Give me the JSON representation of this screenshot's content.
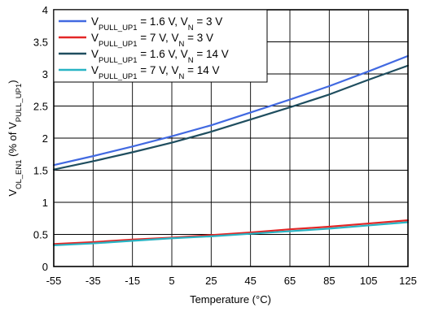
{
  "chart_data": {
    "type": "line",
    "xlabel": "Temperature (°C)",
    "ylabel": {
      "parts": [
        {
          "t": "V",
          "s": false
        },
        {
          "t": "OL_EN1",
          "s": true
        },
        {
          "t": " (% of V",
          "s": false
        },
        {
          "t": "PULL_UP1",
          "s": true
        },
        {
          "t": ")",
          "s": false
        }
      ]
    },
    "xlim": [
      -55,
      125
    ],
    "ylim": [
      0,
      4
    ],
    "xticks": [
      -55,
      -35,
      -15,
      5,
      25,
      45,
      65,
      85,
      105,
      125
    ],
    "yticks": [
      0,
      0.5,
      1,
      1.5,
      2,
      2.5,
      3,
      3.5,
      4
    ],
    "ytick_labels": [
      "0",
      "0.5",
      "1",
      "1.5",
      "2",
      "2.5",
      "3",
      "3.5",
      "4"
    ],
    "grid": true,
    "legend_position": "top-left",
    "series": [
      {
        "name_parts": [
          {
            "t": "V",
            "s": false
          },
          {
            "t": "PULL_UP1",
            "s": true
          },
          {
            "t": " = 1.6 V, V",
            "s": false
          },
          {
            "t": "N",
            "s": true
          },
          {
            "t": " = 3 V",
            "s": false
          }
        ],
        "color": "#4169e1",
        "x": [
          -55,
          -35,
          -15,
          5,
          25,
          45,
          65,
          85,
          105,
          125
        ],
        "y": [
          1.58,
          1.72,
          1.87,
          2.03,
          2.2,
          2.4,
          2.6,
          2.81,
          3.04,
          3.28
        ]
      },
      {
        "name_parts": [
          {
            "t": "V",
            "s": false
          },
          {
            "t": "PULL_UP1",
            "s": true
          },
          {
            "t": " = 7 V, V",
            "s": false
          },
          {
            "t": "N",
            "s": true
          },
          {
            "t": " = 3 V",
            "s": false
          }
        ],
        "color": "#e32626",
        "x": [
          -55,
          -35,
          -15,
          5,
          25,
          45,
          65,
          85,
          105,
          125
        ],
        "y": [
          0.35,
          0.38,
          0.42,
          0.45,
          0.49,
          0.53,
          0.58,
          0.62,
          0.67,
          0.72
        ]
      },
      {
        "name_parts": [
          {
            "t": "V",
            "s": false
          },
          {
            "t": "PULL_UP1",
            "s": true
          },
          {
            "t": " = 1.6 V, V",
            "s": false
          },
          {
            "t": "N",
            "s": true
          },
          {
            "t": " = 14 V",
            "s": false
          }
        ],
        "color": "#1f4e5f",
        "x": [
          -55,
          -35,
          -15,
          5,
          25,
          45,
          65,
          85,
          105,
          125
        ],
        "y": [
          1.51,
          1.64,
          1.78,
          1.93,
          2.1,
          2.29,
          2.48,
          2.68,
          2.91,
          3.13
        ]
      },
      {
        "name_parts": [
          {
            "t": "V",
            "s": false
          },
          {
            "t": "PULL_UP1",
            "s": true
          },
          {
            "t": " = 7 V, V",
            "s": false
          },
          {
            "t": "N",
            "s": true
          },
          {
            "t": " = 14 V",
            "s": false
          }
        ],
        "color": "#28b4c4",
        "x": [
          -55,
          -35,
          -15,
          5,
          25,
          45,
          65,
          85,
          105,
          125
        ],
        "y": [
          0.33,
          0.36,
          0.4,
          0.44,
          0.47,
          0.51,
          0.55,
          0.59,
          0.64,
          0.69
        ]
      }
    ]
  }
}
